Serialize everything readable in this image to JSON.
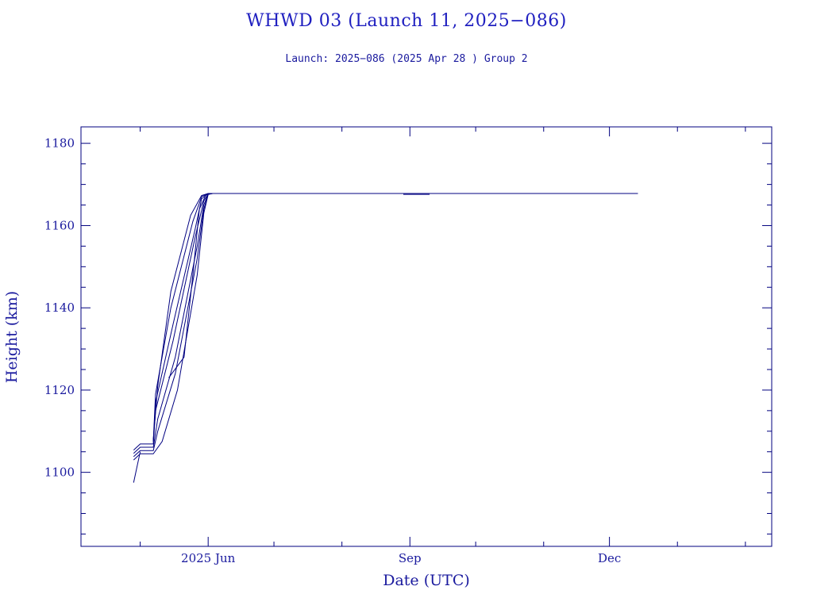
{
  "title": "WHWD 03 (Launch 11, 2025−086)",
  "subtitle": "Launch: 2025−086  (2025 Apr 28 )  Group 2",
  "colors": {
    "text": "#1a1a9e",
    "axis": "#00007f",
    "line": "#000080"
  },
  "chart_data": {
    "type": "line",
    "xlabel": "Date (UTC)",
    "ylabel": "Height (km)",
    "xlim": [
      "2025-04-04",
      "2026-02-13"
    ],
    "ylim": [
      1082,
      1184
    ],
    "x_ticks": [
      {
        "label": "2025 Jun",
        "date": "2025-06-01"
      },
      {
        "label": "Sep",
        "date": "2025-09-01"
      },
      {
        "label": "Dec",
        "date": "2025-12-01"
      }
    ],
    "y_ticks": [
      1100,
      1120,
      1140,
      1160,
      1180
    ],
    "grid": false,
    "series": [
      {
        "points": [
          [
            "2025-04-28",
            1097.5
          ],
          [
            "2025-05-01",
            1105.0
          ]
        ]
      },
      {
        "points": [
          [
            "2025-04-28",
            1103.0
          ],
          [
            "2025-05-01",
            1104.5
          ],
          [
            "2025-05-07",
            1104.5
          ],
          [
            "2025-05-11",
            1107.5
          ],
          [
            "2025-05-18",
            1120.0
          ],
          [
            "2025-05-27",
            1148.0
          ],
          [
            "2025-05-30",
            1163.0
          ],
          [
            "2025-06-01",
            1167.6
          ],
          [
            "2025-06-03",
            1167.8
          ]
        ]
      },
      {
        "points": [
          [
            "2025-04-28",
            1103.8
          ],
          [
            "2025-05-01",
            1105.3
          ],
          [
            "2025-05-07",
            1105.3
          ],
          [
            "2025-05-09",
            1110.0
          ],
          [
            "2025-05-17",
            1124.0
          ],
          [
            "2025-05-27",
            1152.0
          ],
          [
            "2025-05-30",
            1164.0
          ],
          [
            "2025-06-01",
            1167.6
          ],
          [
            "2025-06-03",
            1167.8
          ]
        ]
      },
      {
        "points": [
          [
            "2025-04-28",
            1104.6
          ],
          [
            "2025-05-01",
            1106.1
          ],
          [
            "2025-05-07",
            1106.1
          ],
          [
            "2025-05-09",
            1113.0
          ],
          [
            "2025-05-17",
            1128.0
          ],
          [
            "2025-05-27",
            1155.0
          ],
          [
            "2025-05-30",
            1165.0
          ],
          [
            "2025-06-01",
            1167.7
          ],
          [
            "2025-06-03",
            1167.8
          ]
        ]
      },
      {
        "points": [
          [
            "2025-04-28",
            1105.4
          ],
          [
            "2025-05-01",
            1106.9
          ],
          [
            "2025-05-07",
            1106.9
          ],
          [
            "2025-05-08",
            1115.0
          ],
          [
            "2025-05-16",
            1132.0
          ],
          [
            "2025-05-26",
            1157.0
          ],
          [
            "2025-05-30",
            1166.0
          ],
          [
            "2025-06-01",
            1167.7
          ],
          [
            "2025-06-03",
            1167.8
          ]
        ]
      },
      {
        "points": [
          [
            "2025-05-07",
            1107.3
          ],
          [
            "2025-05-08",
            1117.0
          ],
          [
            "2025-05-16",
            1136.0
          ],
          [
            "2025-05-26",
            1159.0
          ],
          [
            "2025-05-29",
            1166.5
          ],
          [
            "2025-06-01",
            1167.8
          ],
          [
            "2025-06-03",
            1167.8
          ]
        ]
      },
      {
        "points": [
          [
            "2025-05-07",
            1107.6
          ],
          [
            "2025-05-08",
            1119.0
          ],
          [
            "2025-05-15",
            1140.0
          ],
          [
            "2025-05-25",
            1161.0
          ],
          [
            "2025-05-29",
            1167.0
          ],
          [
            "2025-06-01",
            1167.8
          ],
          [
            "2025-06-03",
            1167.8
          ]
        ]
      },
      {
        "points": [
          [
            "2025-05-07",
            1108.0
          ],
          [
            "2025-05-09",
            1121.0
          ],
          [
            "2025-05-15",
            1144.0
          ],
          [
            "2025-05-24",
            1162.5
          ],
          [
            "2025-05-29",
            1167.3
          ],
          [
            "2025-06-01",
            1167.8
          ],
          [
            "2025-06-03",
            1167.8
          ]
        ]
      },
      {
        "points": [
          [
            "2025-05-14",
            1123.0
          ],
          [
            "2025-05-21",
            1128.0
          ],
          [
            "2025-05-25",
            1148.0
          ],
          [
            "2025-05-28",
            1164.0
          ],
          [
            "2025-05-31",
            1167.5
          ],
          [
            "2025-06-02",
            1167.8
          ]
        ]
      },
      {
        "points": [
          [
            "2025-06-03",
            1167.8
          ],
          [
            "2025-12-14",
            1167.8
          ]
        ]
      },
      {
        "points": [
          [
            "2025-08-29",
            1167.6
          ],
          [
            "2025-09-10",
            1167.6
          ]
        ]
      }
    ]
  }
}
